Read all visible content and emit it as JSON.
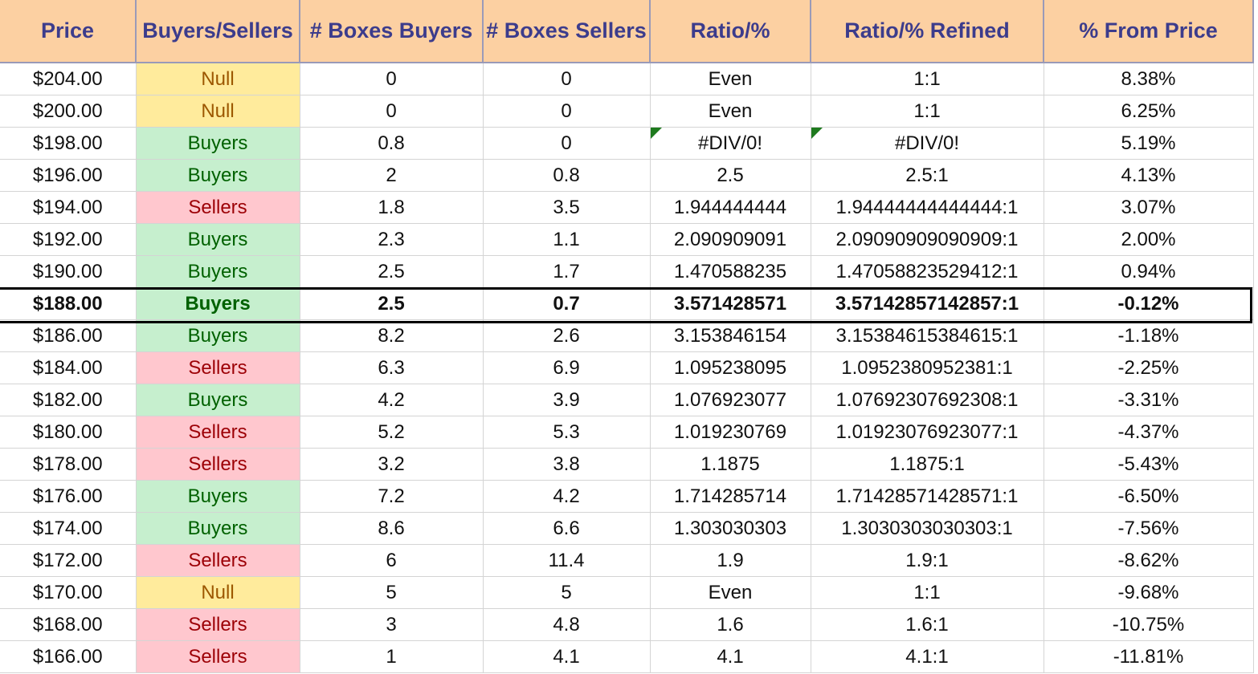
{
  "headers": [
    "Price",
    "Buyers/Sellers",
    "# Boxes Buyers",
    "# Boxes Sellers",
    "Ratio/%",
    "Ratio/% Refined",
    "% From Price"
  ],
  "rows": [
    {
      "price": "$204.00",
      "side": "Null",
      "buyers": "0",
      "sellers": "0",
      "ratio": "Even",
      "refined": "1:1",
      "from": "8.38%"
    },
    {
      "price": "$200.00",
      "side": "Null",
      "buyers": "0",
      "sellers": "0",
      "ratio": "Even",
      "refined": "1:1",
      "from": "6.25%"
    },
    {
      "price": "$198.00",
      "side": "Buyers",
      "buyers": "0.8",
      "sellers": "0",
      "ratio": "#DIV/0!",
      "refined": "#DIV/0!",
      "from": "5.19%",
      "error_flag": true
    },
    {
      "price": "$196.00",
      "side": "Buyers",
      "buyers": "2",
      "sellers": "0.8",
      "ratio": "2.5",
      "refined": "2.5:1",
      "from": "4.13%"
    },
    {
      "price": "$194.00",
      "side": "Sellers",
      "buyers": "1.8",
      "sellers": "3.5",
      "ratio": "1.944444444",
      "refined": "1.94444444444444:1",
      "from": "3.07%"
    },
    {
      "price": "$192.00",
      "side": "Buyers",
      "buyers": "2.3",
      "sellers": "1.1",
      "ratio": "2.090909091",
      "refined": "2.09090909090909:1",
      "from": "2.00%"
    },
    {
      "price": "$190.00",
      "side": "Buyers",
      "buyers": "2.5",
      "sellers": "1.7",
      "ratio": "1.470588235",
      "refined": "1.47058823529412:1",
      "from": "0.94%"
    },
    {
      "price": "$188.00",
      "side": "Buyers",
      "buyers": "2.5",
      "sellers": "0.7",
      "ratio": "3.571428571",
      "refined": "3.57142857142857:1",
      "from": "-0.12%",
      "current": true
    },
    {
      "price": "$186.00",
      "side": "Buyers",
      "buyers": "8.2",
      "sellers": "2.6",
      "ratio": "3.153846154",
      "refined": "3.15384615384615:1",
      "from": "-1.18%"
    },
    {
      "price": "$184.00",
      "side": "Sellers",
      "buyers": "6.3",
      "sellers": "6.9",
      "ratio": "1.095238095",
      "refined": "1.0952380952381:1",
      "from": "-2.25%"
    },
    {
      "price": "$182.00",
      "side": "Buyers",
      "buyers": "4.2",
      "sellers": "3.9",
      "ratio": "1.076923077",
      "refined": "1.07692307692308:1",
      "from": "-3.31%"
    },
    {
      "price": "$180.00",
      "side": "Sellers",
      "buyers": "5.2",
      "sellers": "5.3",
      "ratio": "1.019230769",
      "refined": "1.01923076923077:1",
      "from": "-4.37%"
    },
    {
      "price": "$178.00",
      "side": "Sellers",
      "buyers": "3.2",
      "sellers": "3.8",
      "ratio": "1.1875",
      "refined": "1.1875:1",
      "from": "-5.43%"
    },
    {
      "price": "$176.00",
      "side": "Buyers",
      "buyers": "7.2",
      "sellers": "4.2",
      "ratio": "1.714285714",
      "refined": "1.71428571428571:1",
      "from": "-6.50%"
    },
    {
      "price": "$174.00",
      "side": "Buyers",
      "buyers": "8.6",
      "sellers": "6.6",
      "ratio": "1.303030303",
      "refined": "1.3030303030303:1",
      "from": "-7.56%"
    },
    {
      "price": "$172.00",
      "side": "Sellers",
      "buyers": "6",
      "sellers": "11.4",
      "ratio": "1.9",
      "refined": "1.9:1",
      "from": "-8.62%"
    },
    {
      "price": "$170.00",
      "side": "Null",
      "buyers": "5",
      "sellers": "5",
      "ratio": "Even",
      "refined": "1:1",
      "from": "-9.68%"
    },
    {
      "price": "$168.00",
      "side": "Sellers",
      "buyers": "3",
      "sellers": "4.8",
      "ratio": "1.6",
      "refined": "1.6:1",
      "from": "-10.75%"
    },
    {
      "price": "$166.00",
      "side": "Sellers",
      "buyers": "1",
      "sellers": "4.1",
      "ratio": "4.1",
      "refined": "4.1:1",
      "from": "-11.81%"
    }
  ],
  "colors": {
    "buyers_fill": "#c6efce",
    "sellers_fill": "#ffc7ce",
    "null_fill": "#ffeb9c",
    "header_fill": "#fcd0a2"
  }
}
